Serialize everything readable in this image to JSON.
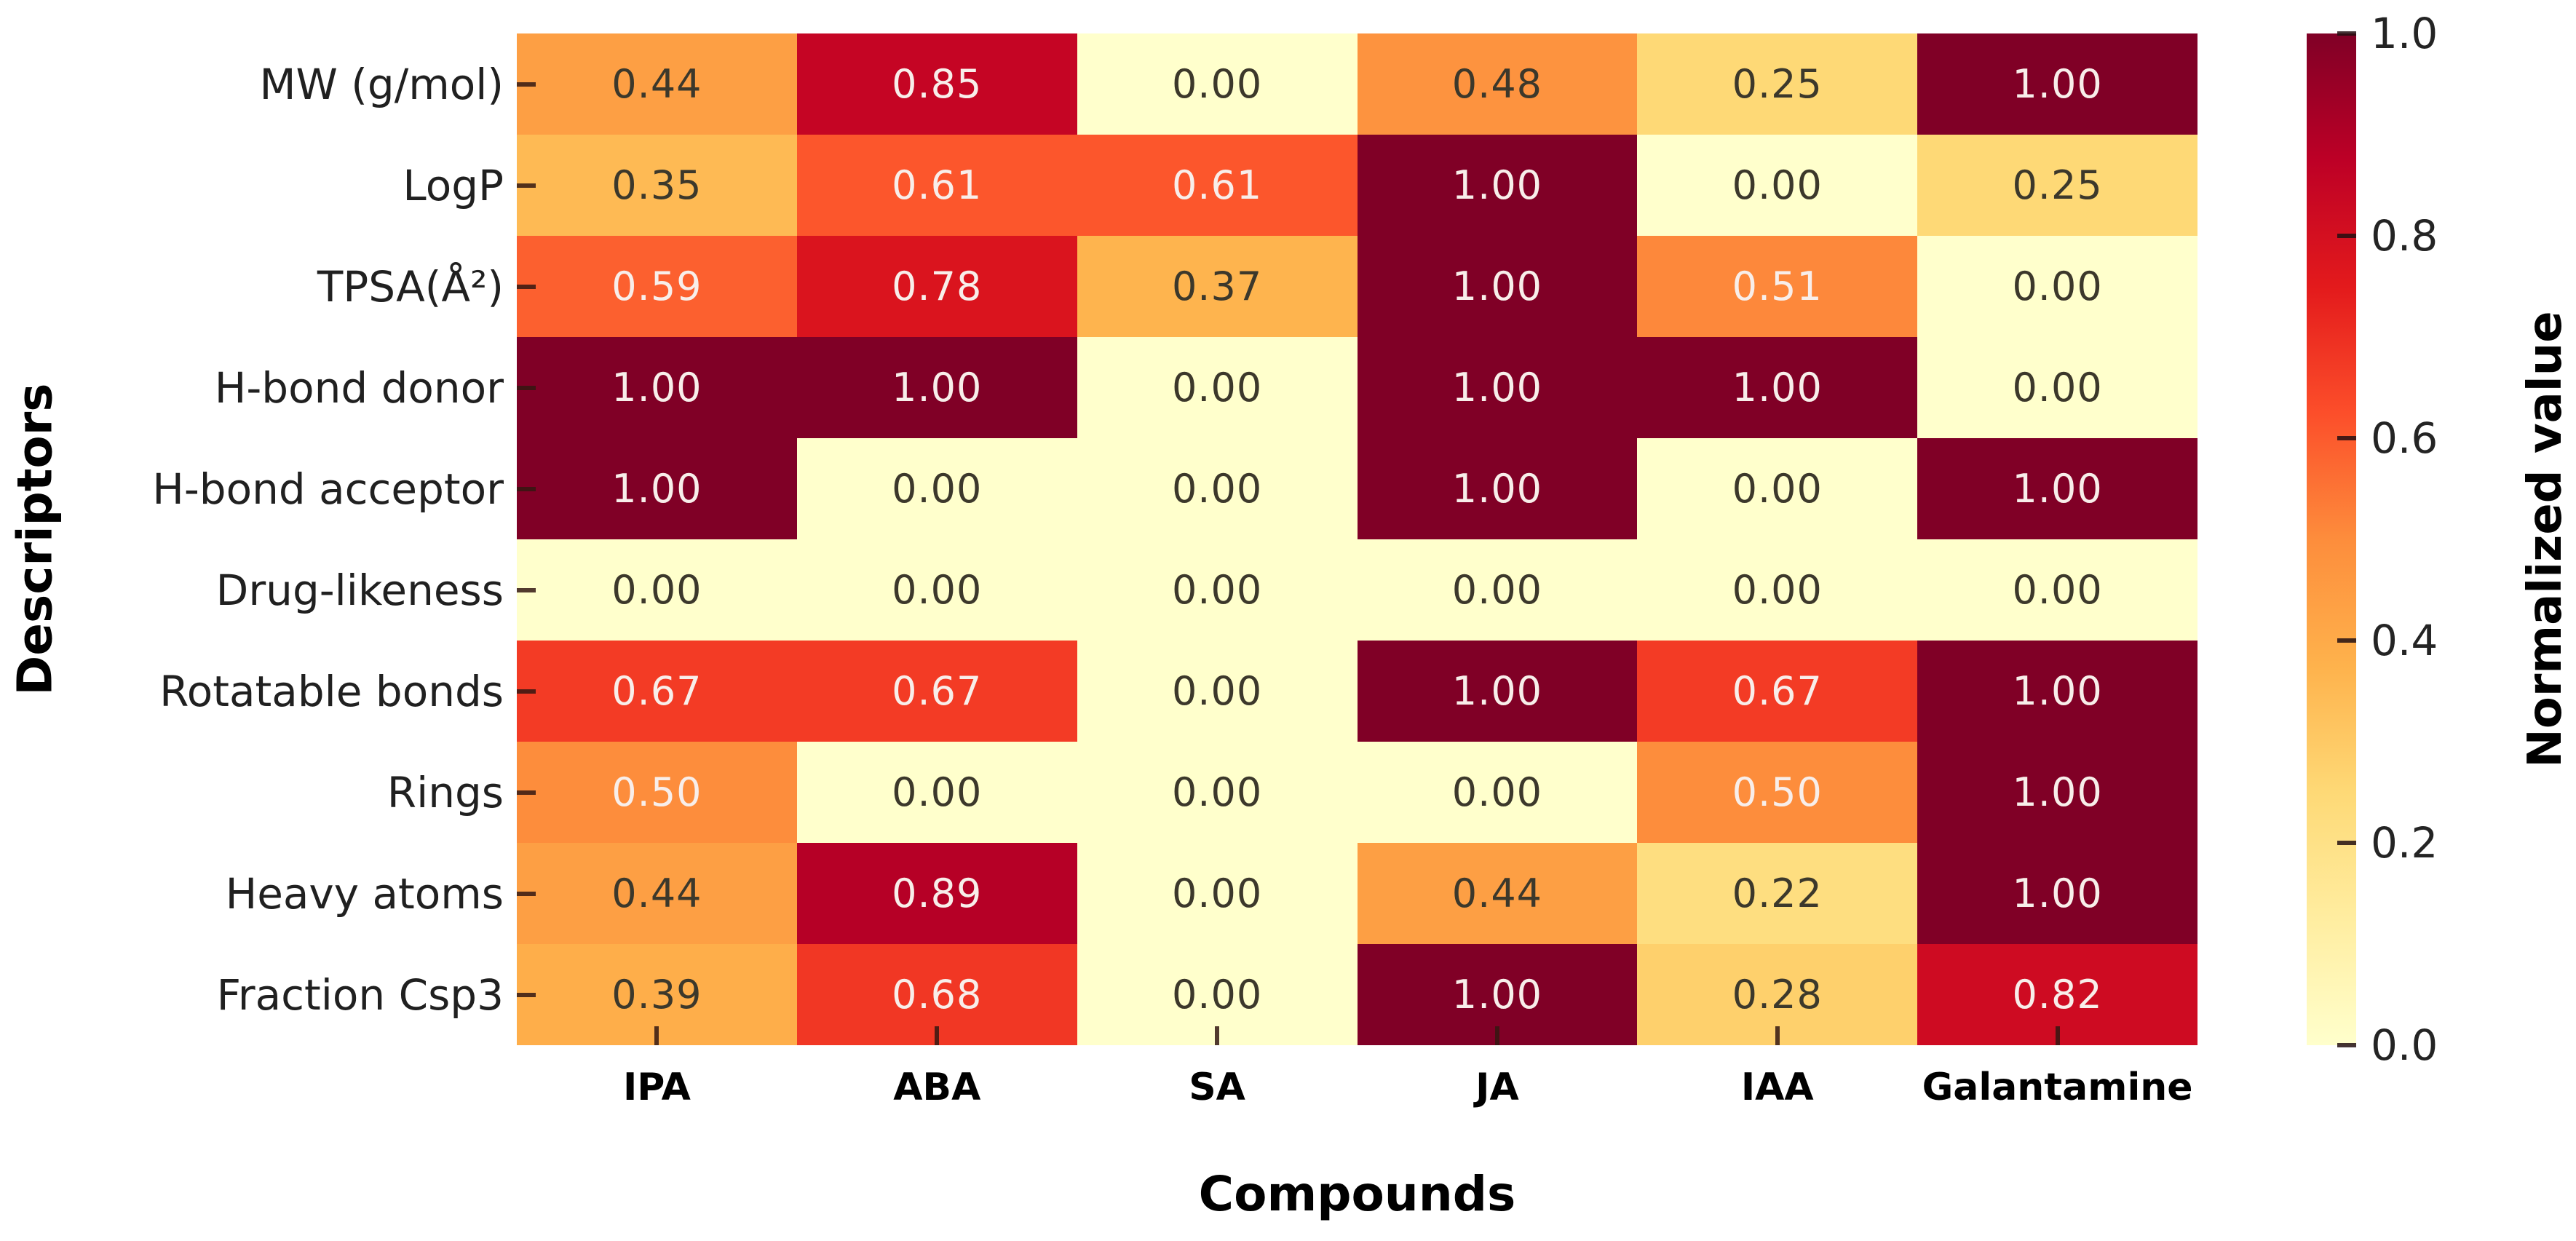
{
  "chart_data": {
    "type": "heatmap",
    "xlabel": "Compounds",
    "ylabel": "Descriptors",
    "colorbar_label": "Normalized value",
    "colormap": "YlOrRd",
    "vmin": 0.0,
    "vmax": 1.0,
    "decimals": 2,
    "rows": [
      "MW (g/mol)",
      "LogP",
      "TPSA(Å²)",
      "H-bond donor",
      "H-bond acceptor",
      "Drug-likeness",
      "Rotatable bonds",
      "Rings",
      "Heavy atoms",
      "Fraction Csp3"
    ],
    "columns": [
      "IPA",
      "ABA",
      "SA",
      "JA",
      "IAA",
      "Galantamine"
    ],
    "values": [
      [
        0.44,
        0.85,
        0.0,
        0.48,
        0.25,
        1.0
      ],
      [
        0.35,
        0.61,
        0.61,
        1.0,
        0.0,
        0.25
      ],
      [
        0.59,
        0.78,
        0.37,
        1.0,
        0.51,
        0.0
      ],
      [
        1.0,
        1.0,
        0.0,
        1.0,
        1.0,
        0.0
      ],
      [
        1.0,
        0.0,
        0.0,
        1.0,
        0.0,
        1.0
      ],
      [
        0.0,
        0.0,
        0.0,
        0.0,
        0.0,
        0.0
      ],
      [
        0.67,
        0.67,
        0.0,
        1.0,
        0.67,
        1.0
      ],
      [
        0.5,
        0.0,
        0.0,
        0.0,
        0.5,
        1.0
      ],
      [
        0.44,
        0.89,
        0.0,
        0.44,
        0.22,
        1.0
      ],
      [
        0.39,
        0.68,
        0.0,
        1.0,
        0.28,
        0.82
      ]
    ],
    "annotation_light_text_threshold": 0.5,
    "colormap_stops": [
      {
        "pos": 0.0,
        "color": "#ffffcc"
      },
      {
        "pos": 0.125,
        "color": "#ffeda0"
      },
      {
        "pos": 0.25,
        "color": "#fed976"
      },
      {
        "pos": 0.375,
        "color": "#feb24c"
      },
      {
        "pos": 0.5,
        "color": "#fd8d3c"
      },
      {
        "pos": 0.625,
        "color": "#fc4e2a"
      },
      {
        "pos": 0.75,
        "color": "#e31a1c"
      },
      {
        "pos": 0.875,
        "color": "#bd0026"
      },
      {
        "pos": 1.0,
        "color": "#800026"
      }
    ],
    "colorbar_ticks": [
      {
        "label": "1.0",
        "value": 1.0
      },
      {
        "label": "0.8",
        "value": 0.8
      },
      {
        "label": "0.6",
        "value": 0.6
      },
      {
        "label": "0.4",
        "value": 0.4
      },
      {
        "label": "0.2",
        "value": 0.2
      },
      {
        "label": "0.0",
        "value": 0.0
      }
    ]
  }
}
